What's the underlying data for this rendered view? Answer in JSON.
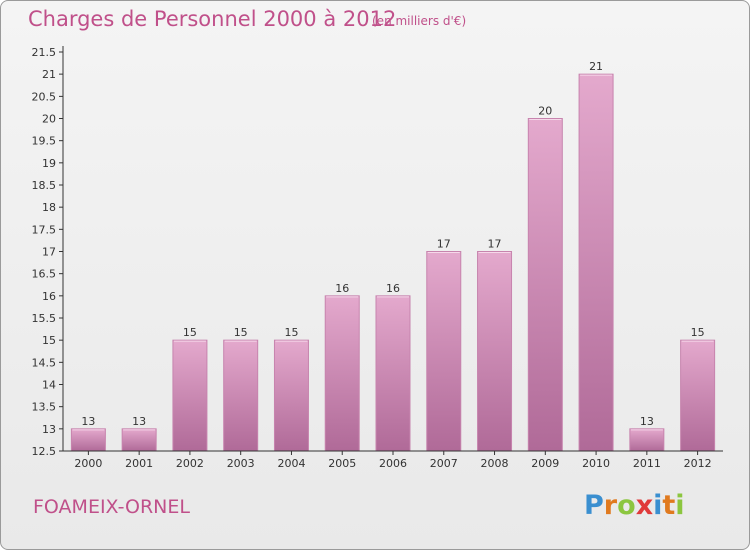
{
  "header": {
    "title": "Charges de Personnel 2000 à 2012",
    "subtitle": "(en milliers d'€)"
  },
  "footer": {
    "commune": "FOAMEIX-ORNEL",
    "brand_letters": [
      "P",
      "r",
      "o",
      "x",
      "i",
      "t",
      "i"
    ],
    "brand_colors": [
      "#3a8fd0",
      "#e07a1f",
      "#8cc63f",
      "#e03a3a",
      "#3a8fd0",
      "#e07a1f",
      "#8cc63f"
    ]
  },
  "colors": {
    "bar_top": "#e4a9cd",
    "bar_bottom": "#b06a98",
    "bar_edge": "#c784ae",
    "text": "#c0508a"
  },
  "chart_data": {
    "type": "bar",
    "categories": [
      "2000",
      "2001",
      "2002",
      "2003",
      "2004",
      "2005",
      "2006",
      "2007",
      "2008",
      "2009",
      "2010",
      "2011",
      "2012"
    ],
    "values": [
      13,
      13,
      15,
      15,
      15,
      16,
      16,
      17,
      17,
      20,
      21,
      13,
      15
    ],
    "data_labels": [
      "13",
      "13",
      "15",
      "15",
      "15",
      "16",
      "16",
      "17",
      "17",
      "20",
      "21",
      "13",
      "15"
    ],
    "yticks": [
      "12.5",
      "13",
      "13.5",
      "14",
      "14.5",
      "15",
      "15.5",
      "16",
      "16.5",
      "17",
      "17.5",
      "18",
      "18.5",
      "19",
      "19.5",
      "20",
      "20.5",
      "21",
      "21.5"
    ],
    "ylim": [
      12.5,
      21.5
    ],
    "grid": false,
    "legend": "none"
  }
}
